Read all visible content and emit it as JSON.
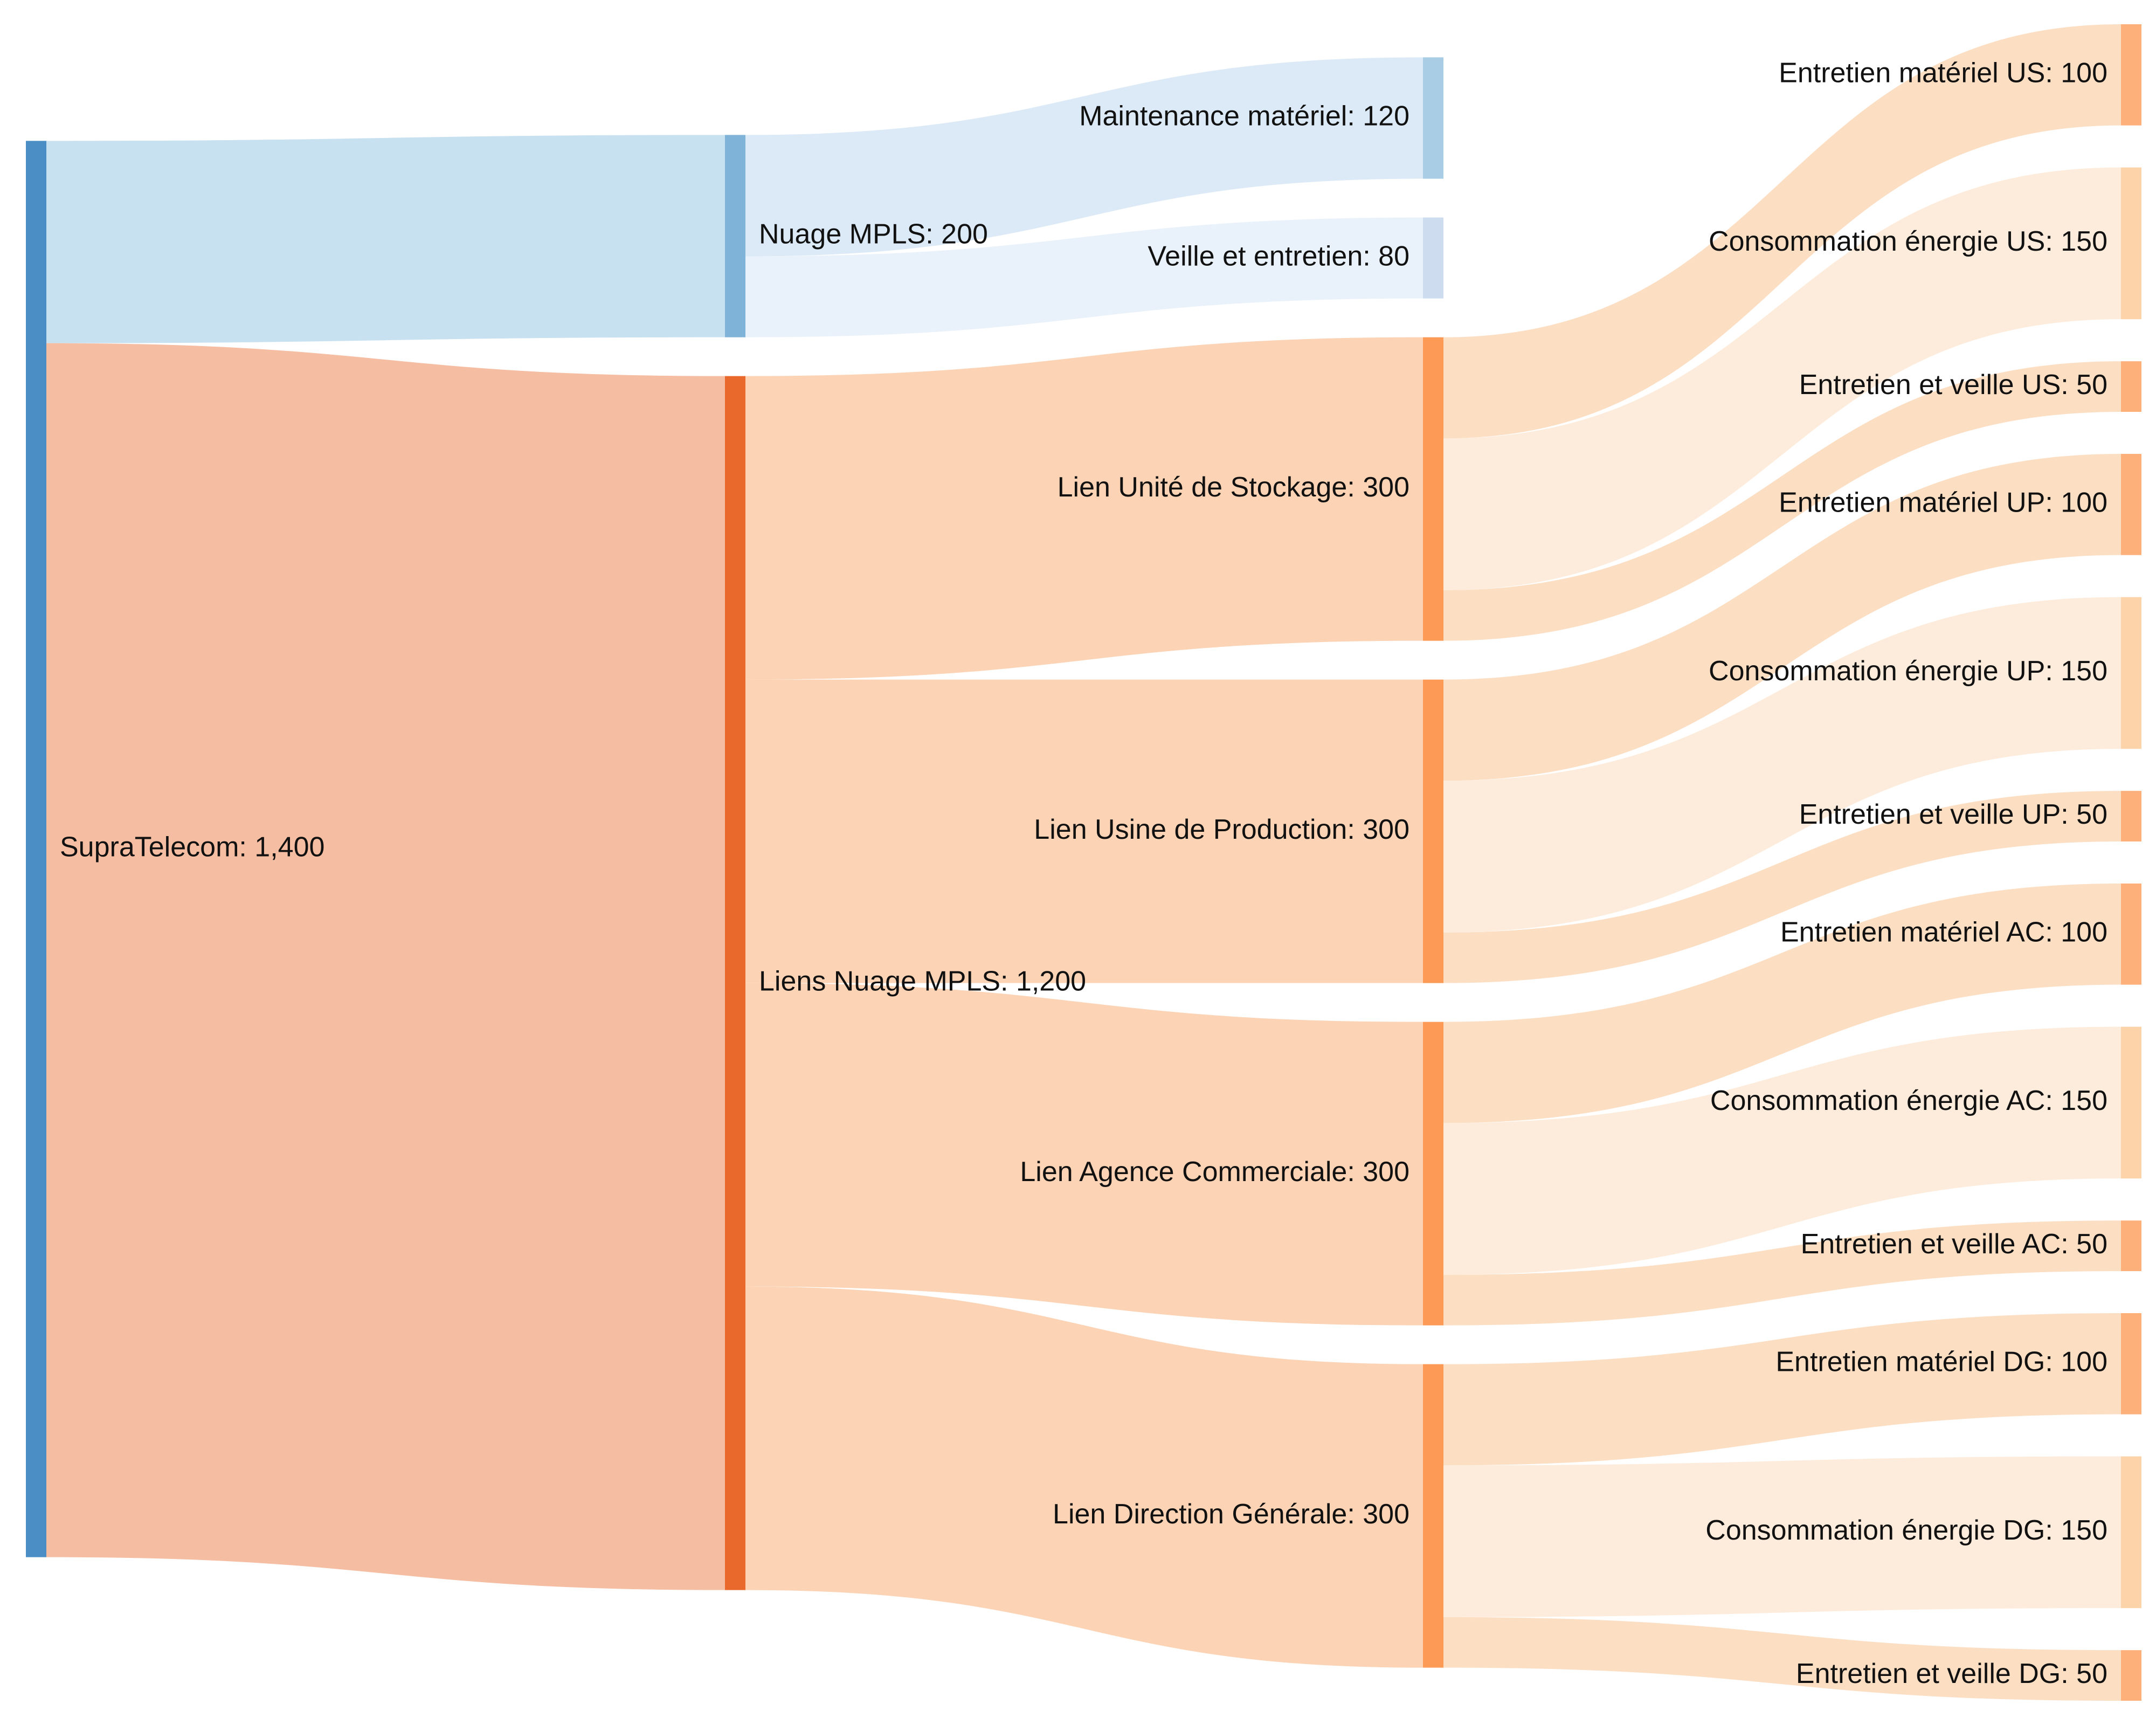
{
  "chart_data": {
    "type": "sankey",
    "title": "",
    "value_format": "thousands-comma",
    "nodes": [
      {
        "id": "supratelecom",
        "label": "SupraTelecom",
        "value": 1400,
        "column": 0,
        "color": "#4a8ec5"
      },
      {
        "id": "nuage",
        "label": "Nuage MPLS",
        "value": 200,
        "column": 1,
        "color": "#7fb3d8"
      },
      {
        "id": "liens",
        "label": "Liens Nuage MPLS",
        "value": 1200,
        "column": 1,
        "color": "#e9692c"
      },
      {
        "id": "maint",
        "label": "Maintenance matériel",
        "value": 120,
        "column": 2,
        "color": "#a9cde4"
      },
      {
        "id": "veille",
        "label": "Veille et entretien",
        "value": 80,
        "column": 2,
        "color": "#cddcef"
      },
      {
        "id": "lus",
        "label": "Lien Unité de Stockage",
        "value": 300,
        "column": 2,
        "color": "#fd9a55"
      },
      {
        "id": "lup",
        "label": "Lien Usine de Production",
        "value": 300,
        "column": 2,
        "color": "#fd9a55"
      },
      {
        "id": "lac",
        "label": "Lien Agence Commerciale",
        "value": 300,
        "column": 2,
        "color": "#fd9a55"
      },
      {
        "id": "ldg",
        "label": "Lien Direction Générale",
        "value": 300,
        "column": 2,
        "color": "#fd9a55"
      },
      {
        "id": "emus",
        "label": "Entretien matériel US",
        "value": 100,
        "column": 3,
        "color": "#fdb07a"
      },
      {
        "id": "ceus",
        "label": "Consommation énergie US",
        "value": 150,
        "column": 3,
        "color": "#fdd3aa"
      },
      {
        "id": "evus",
        "label": "Entretien et veille US",
        "value": 50,
        "column": 3,
        "color": "#fdb07a"
      },
      {
        "id": "emup",
        "label": "Entretien matériel UP",
        "value": 100,
        "column": 3,
        "color": "#fdb07a"
      },
      {
        "id": "ceup",
        "label": "Consommation énergie UP",
        "value": 150,
        "column": 3,
        "color": "#fdd3aa"
      },
      {
        "id": "evup",
        "label": "Entretien et veille UP",
        "value": 50,
        "column": 3,
        "color": "#fdb07a"
      },
      {
        "id": "emac",
        "label": "Entretien matériel AC",
        "value": 100,
        "column": 3,
        "color": "#fdb07a"
      },
      {
        "id": "ceac",
        "label": "Consommation énergie AC",
        "value": 150,
        "column": 3,
        "color": "#fdd3aa"
      },
      {
        "id": "evac",
        "label": "Entretien et veille AC",
        "value": 50,
        "column": 3,
        "color": "#fdb07a"
      },
      {
        "id": "emdg",
        "label": "Entretien matériel DG",
        "value": 100,
        "column": 3,
        "color": "#fdb07a"
      },
      {
        "id": "cedg",
        "label": "Consommation énergie DG",
        "value": 150,
        "column": 3,
        "color": "#fdd3aa"
      },
      {
        "id": "evdg",
        "label": "Entretien et veille DG",
        "value": 50,
        "column": 3,
        "color": "#fdb07a"
      }
    ],
    "links": [
      {
        "source": "supratelecom",
        "target": "nuage",
        "value": 200,
        "color": "#c5dff0"
      },
      {
        "source": "supratelecom",
        "target": "liens",
        "value": 1200,
        "color": "#f4b99c"
      },
      {
        "source": "nuage",
        "target": "maint",
        "value": 120,
        "color": "#d9e9f5"
      },
      {
        "source": "nuage",
        "target": "veille",
        "value": 80,
        "color": "#e8f1fa"
      },
      {
        "source": "liens",
        "target": "lus",
        "value": 300,
        "color": "#fcd1b0"
      },
      {
        "source": "liens",
        "target": "lup",
        "value": 300,
        "color": "#fcd1b0"
      },
      {
        "source": "liens",
        "target": "lac",
        "value": 300,
        "color": "#fcd1b0"
      },
      {
        "source": "liens",
        "target": "ldg",
        "value": 300,
        "color": "#fcd1b0"
      },
      {
        "source": "lus",
        "target": "emus",
        "value": 100,
        "color": "#fcdcc0"
      },
      {
        "source": "lus",
        "target": "ceus",
        "value": 150,
        "color": "#fdebd9"
      },
      {
        "source": "lus",
        "target": "evus",
        "value": 50,
        "color": "#fcdcc0"
      },
      {
        "source": "lup",
        "target": "emup",
        "value": 100,
        "color": "#fcdcc0"
      },
      {
        "source": "lup",
        "target": "ceup",
        "value": 150,
        "color": "#fdebd9"
      },
      {
        "source": "lup",
        "target": "evup",
        "value": 50,
        "color": "#fcdcc0"
      },
      {
        "source": "lac",
        "target": "emac",
        "value": 100,
        "color": "#fcdcc0"
      },
      {
        "source": "lac",
        "target": "ceac",
        "value": 150,
        "color": "#fdebd9"
      },
      {
        "source": "lac",
        "target": "evac",
        "value": 50,
        "color": "#fcdcc0"
      },
      {
        "source": "ldg",
        "target": "emdg",
        "value": 100,
        "color": "#fcdcc0"
      },
      {
        "source": "ldg",
        "target": "cedg",
        "value": 150,
        "color": "#fdebd9"
      },
      {
        "source": "ldg",
        "target": "evdg",
        "value": 50,
        "color": "#fcdcc0"
      }
    ]
  }
}
